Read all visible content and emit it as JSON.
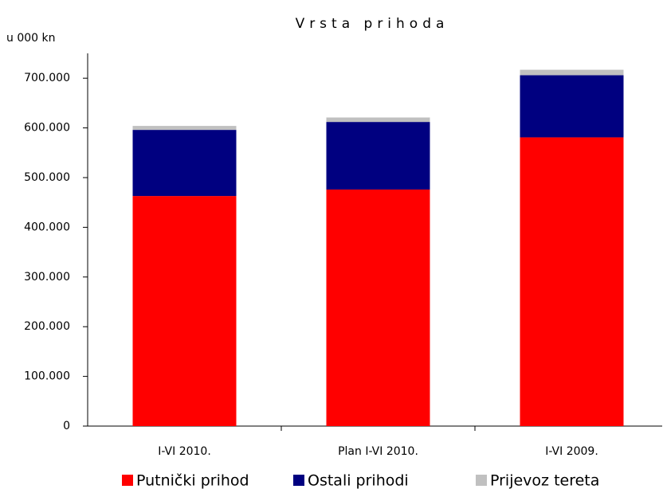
{
  "chart_data": {
    "type": "stacked_bar",
    "title": "Vrsta prihoda",
    "y_label": "u 000 kn",
    "categories": [
      "I-VI 2010.",
      "Plan I-VI 2010.",
      "I-VI 2009."
    ],
    "series": [
      {
        "name": "Putnički prihod",
        "color": "#ff0000",
        "values": [
          463000,
          476000,
          581000
        ]
      },
      {
        "name": "Ostali prihodi",
        "color": "#000080",
        "values": [
          133000,
          136000,
          125000
        ]
      },
      {
        "name": "Prijevoz tereta",
        "color": "#c0c0c0",
        "values": [
          8000,
          9000,
          11000
        ]
      }
    ],
    "ylim": [
      0,
      750000
    ],
    "yticks": [
      0,
      {
        "value": 100000,
        "label": "100.000"
      },
      {
        "value": 200000,
        "label": "200.000"
      },
      {
        "value": 300000,
        "label": "300.000"
      },
      {
        "value": 400000,
        "label": "400.000"
      },
      {
        "value": 500000,
        "label": "500.000"
      },
      {
        "value": 600000,
        "label": "600.000"
      },
      {
        "value": 700000,
        "label": "700.000"
      }
    ],
    "grid": false,
    "legend": "bottom"
  }
}
